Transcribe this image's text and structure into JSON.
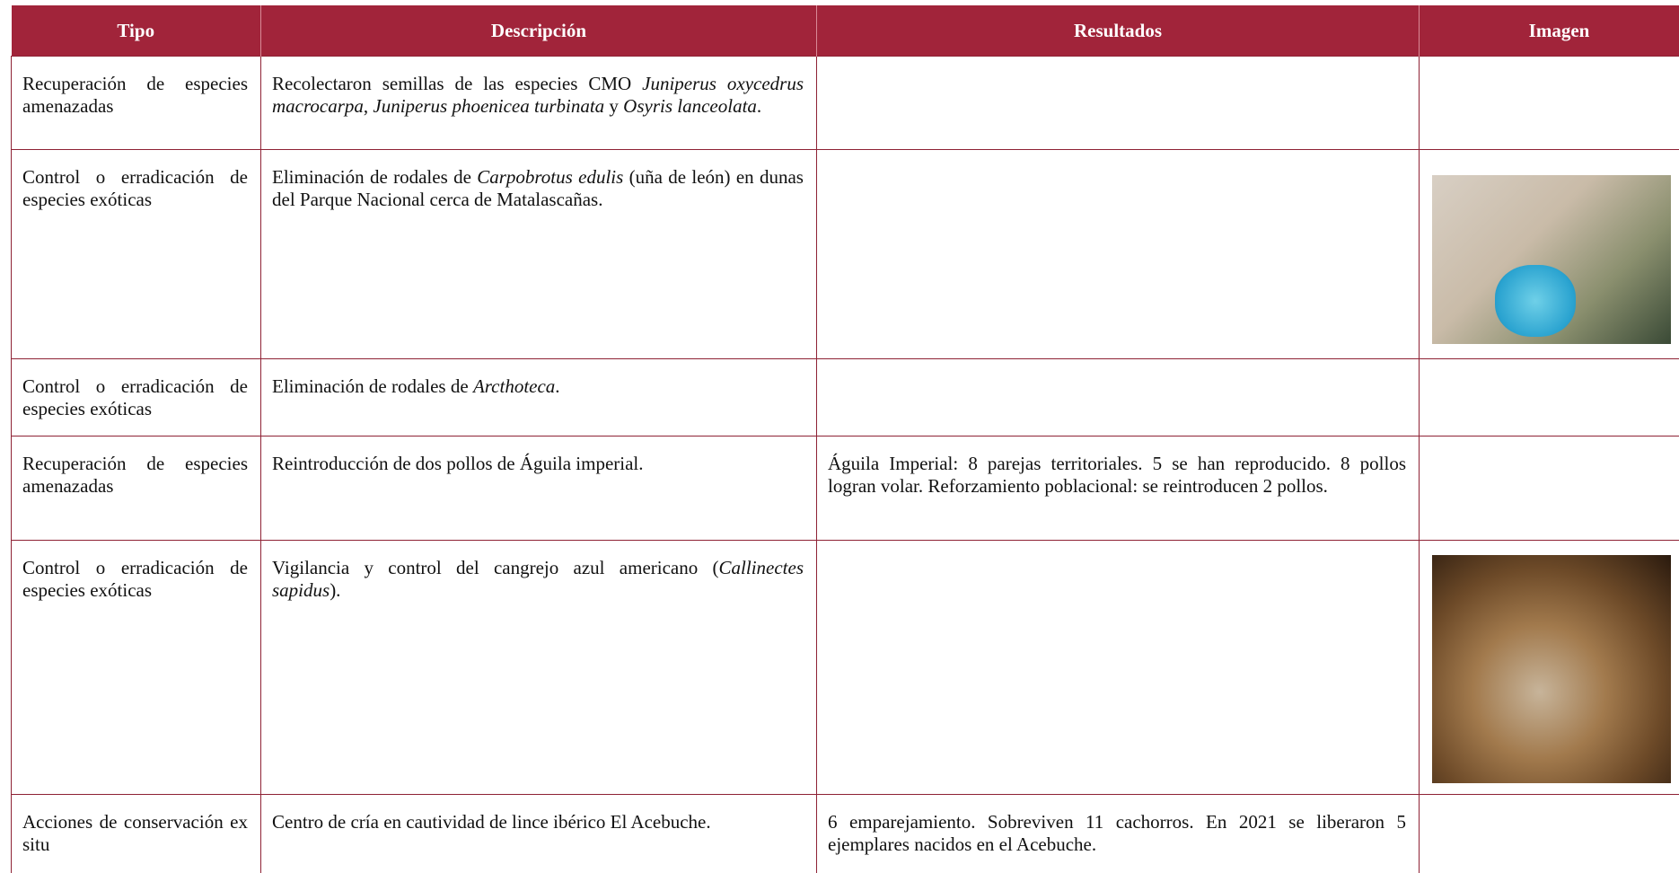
{
  "table": {
    "headers": [
      "Tipo",
      "Descripción",
      "Resultados",
      "Imagen"
    ],
    "rows": [
      {
        "tipo": "Recuperación de especies amenazadas",
        "descripcion": [
          "Recolectaron semillas de las especies CMO ",
          "Juniperus oxycedrus macrocarpa",
          ", ",
          "Juniperus phoenicea turbinata",
          " y ",
          "Osyris lanceolata",
          "."
        ]
      },
      {
        "tipo": "Control o erradicación de especies exóticas",
        "descripcion": [
          "Eliminación de rodales de ",
          "Carpobrotus edulis",
          " (uña de león) en dunas del Parque Nacional cerca de Matalascañas."
        ]
      },
      {
        "tipo": "Control o erradicación de especies exóticas",
        "descripcion": [
          "Eliminación de rodales de ",
          "Arcthoteca",
          "."
        ]
      },
      {
        "tipo": "Recuperación de especies amenazadas",
        "descripcion": [
          "Reintroducción de dos pollos de Águila imperial."
        ],
        "resultados": "Águila Imperial: 8 parejas territoriales. 5 se han reproducido. 8 pollos logran volar. Reforzamiento poblacional: se reintroducen 2 pollos."
      },
      {
        "tipo": "Control o erradicación de especies exóticas",
        "descripcion": [
          "Vigilancia y control del cangrejo azul americano (",
          "Callinectes sapidus",
          ")."
        ]
      },
      {
        "tipo": "Acciones de conservación ex situ",
        "descripcion": [
          "Centro de cría en cautividad de lince ibérico El Acebuche."
        ],
        "resultados": "6 emparejamiento. Sobreviven 11 cachorros. En 2021 se liberaron 5 ejemplares nacidos en el Acebuche."
      }
    ]
  }
}
